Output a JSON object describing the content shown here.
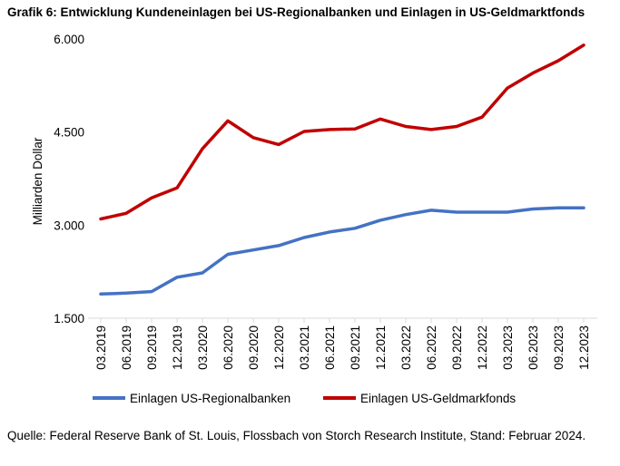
{
  "chart_data": {
    "type": "line",
    "title": "Grafik 6: Entwicklung Kundeneinlagen bei US-Regionalbanken und Einlagen in US-Geldmarktfonds",
    "xlabel": "",
    "ylabel": "Milliarden Dollar",
    "ylim": [
      1500,
      6000
    ],
    "yticks": [
      1500,
      3000,
      4500,
      6000
    ],
    "ytick_labels": [
      "1.500",
      "3.000",
      "4.500",
      "6.000"
    ],
    "grid": false,
    "legend_position": "bottom",
    "categories": [
      "03.2019",
      "06.2019",
      "09.2019",
      "12.2019",
      "03.2020",
      "06.2020",
      "09.2020",
      "12.2020",
      "03.2021",
      "06.2021",
      "09.2021",
      "12.2021",
      "03.2022",
      "06.2022",
      "09.2022",
      "12.2022",
      "03.2023",
      "06.2023",
      "09.2023",
      "12.2023"
    ],
    "series": [
      {
        "name": "Einlagen US-Regionalbanken",
        "color": "#4472C4",
        "values": [
          1890,
          1905,
          1930,
          2160,
          2230,
          2530,
          2600,
          2670,
          2800,
          2890,
          2950,
          3080,
          3170,
          3240,
          3210,
          3210,
          3210,
          3260,
          3280,
          3280
        ]
      },
      {
        "name": "Einlagen US-Geldmarkfonds",
        "color": "#C00000",
        "values": [
          3100,
          3190,
          3440,
          3600,
          4230,
          4680,
          4410,
          4300,
          4510,
          4540,
          4550,
          4710,
          4590,
          4540,
          4590,
          4740,
          5210,
          5450,
          5650,
          5900
        ]
      }
    ]
  },
  "source": "Quelle: Federal Reserve Bank of St. Louis, Flossbach von Storch Research Institute, Stand: Februar 2024."
}
